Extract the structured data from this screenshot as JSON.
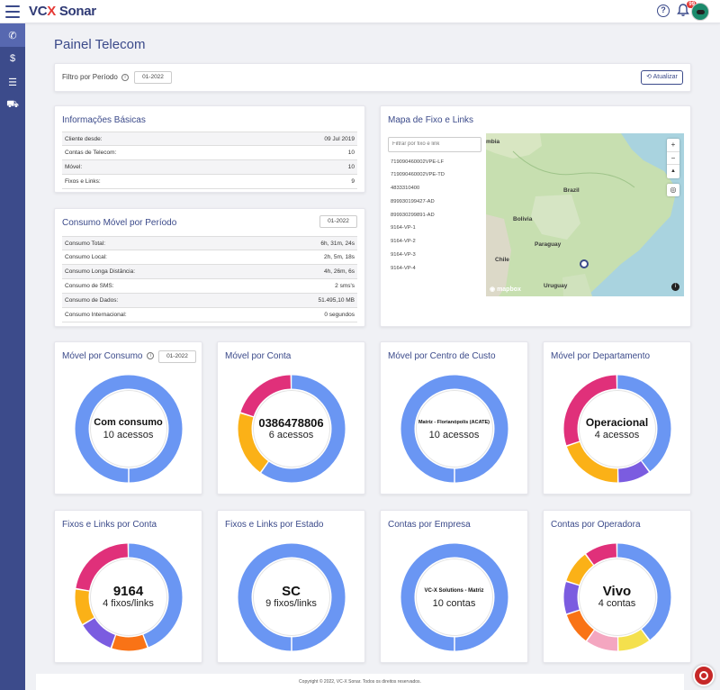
{
  "app": {
    "logo_a": "VC",
    "logo_x": "X",
    "logo_b": " Sonar",
    "notification_count": "99"
  },
  "sidebar": {
    "items": [
      {
        "icon": "phone-icon",
        "glyph": "✆"
      },
      {
        "icon": "dollar-icon",
        "glyph": "$"
      },
      {
        "icon": "list-icon",
        "glyph": "☰"
      },
      {
        "icon": "cart-icon",
        "glyph": "⛟"
      }
    ]
  },
  "page": {
    "title": "Painel Telecom"
  },
  "filter": {
    "label": "Filtro por Período",
    "period": "01-2022",
    "refresh_label": "Atualizar"
  },
  "basic_info": {
    "title": "Informações Básicas",
    "rows": [
      {
        "label": "Cliente desde:",
        "value": "09 Jul 2019"
      },
      {
        "label": "Contas de Telecom:",
        "value": "10"
      },
      {
        "label": "Móvel:",
        "value": "10"
      },
      {
        "label": "Fixos e Links:",
        "value": "9"
      }
    ]
  },
  "mobile_usage": {
    "title": "Consumo Móvel por Período",
    "period": "01-2022",
    "rows": [
      {
        "label": "Consumo Total:",
        "value": "6h, 31m, 24s"
      },
      {
        "label": "Consumo Local:",
        "value": "2h, 5m, 18s"
      },
      {
        "label": "Consumo Longa Distância:",
        "value": "4h, 26m, 6s"
      },
      {
        "label": "Consumo de SMS:",
        "value": "2 sms's"
      },
      {
        "label": "Consumo de Dados:",
        "value": "51.495,10 MB"
      },
      {
        "label": "Consumo Internacional:",
        "value": "0 segundos"
      }
    ]
  },
  "map": {
    "title": "Mapa de Fixo e Links",
    "filter_placeholder": "Filtrar por fixo e link",
    "items": [
      "719090460002VPE-LF",
      "719090460002VPE-TD",
      "4833310400",
      "899930199427-AD",
      "899930299891-AD",
      "9164-VP-1",
      "9164-VP-2",
      "9164-VP-3",
      "9164-VP-4"
    ],
    "labels": {
      "colombia": "mbia",
      "brazil": "Brazil",
      "bolivia": "Bolivia",
      "paraguay": "Paraguay",
      "chile": "Chile",
      "uruguay": "Uruguay",
      "mapbox": "mapbox"
    },
    "zoom_in": "+",
    "zoom_out": "−",
    "compass": "▲",
    "locate": "◎",
    "info": "i"
  },
  "donuts": [
    {
      "title": "Móvel por Consumo",
      "has_filter": true,
      "period": "01-2022",
      "center_main": "Com consumo",
      "center_sub": "10 acessos",
      "main_size": 11,
      "segments": [
        {
          "color": "#6a96f3",
          "value": 100
        }
      ]
    },
    {
      "title": "Móvel por Conta",
      "has_filter": false,
      "center_main": "0386478806",
      "center_sub": "6 acessos",
      "main_size": 13,
      "segments": [
        {
          "color": "#6a96f3",
          "value": 60
        },
        {
          "color": "#fbb117",
          "value": 20
        },
        {
          "color": "#e0307a",
          "value": 20
        }
      ]
    },
    {
      "title": "Móvel por Centro de Custo",
      "has_filter": false,
      "center_main": "Matriz - Florianópolis (ACATE)",
      "center_sub": "10 acessos",
      "main_size": 5.5,
      "segments": [
        {
          "color": "#6a96f3",
          "value": 100
        }
      ]
    },
    {
      "title": "Móvel por Departamento",
      "has_filter": false,
      "center_main": "Operacional",
      "center_sub": "4 acessos",
      "main_size": 12,
      "segments": [
        {
          "color": "#6a96f3",
          "value": 40
        },
        {
          "color": "#7b5ce0",
          "value": 10
        },
        {
          "color": "#fbb117",
          "value": 20
        },
        {
          "color": "#e0307a",
          "value": 30
        }
      ]
    },
    {
      "title": "Fixos e Links por Conta",
      "has_filter": false,
      "center_main": "9164",
      "center_sub": "4 fixos/links",
      "main_size": 15,
      "segments": [
        {
          "color": "#6a96f3",
          "value": 44.4
        },
        {
          "color": "#f97316",
          "value": 11.1
        },
        {
          "color": "#7b5ce0",
          "value": 11.1
        },
        {
          "color": "#fbb117",
          "value": 11.1
        },
        {
          "color": "#e0307a",
          "value": 22.3
        }
      ]
    },
    {
      "title": "Fixos e Links por Estado",
      "has_filter": false,
      "center_main": "SC",
      "center_sub": "9 fixos/links",
      "main_size": 15,
      "segments": [
        {
          "color": "#6a96f3",
          "value": 100
        }
      ]
    },
    {
      "title": "Contas por Empresa",
      "has_filter": false,
      "center_main": "VC-X Solutions - Matriz",
      "center_sub": "10 contas",
      "main_size": 6,
      "segments": [
        {
          "color": "#6a96f3",
          "value": 100
        }
      ]
    },
    {
      "title": "Contas por Operadora",
      "has_filter": false,
      "center_main": "Vivo",
      "center_sub": "4 contas",
      "main_size": 15,
      "segments": [
        {
          "color": "#6a96f3",
          "value": 40
        },
        {
          "color": "#f4e04d",
          "value": 10
        },
        {
          "color": "#f4a6c0",
          "value": 10
        },
        {
          "color": "#f97316",
          "value": 10
        },
        {
          "color": "#7b5ce0",
          "value": 10
        },
        {
          "color": "#fbb117",
          "value": 10
        },
        {
          "color": "#e0307a",
          "value": 10
        }
      ]
    }
  ],
  "footer": {
    "text": "Copyright © 2022, VC-X Sonar. Todos os direitos reservados."
  }
}
